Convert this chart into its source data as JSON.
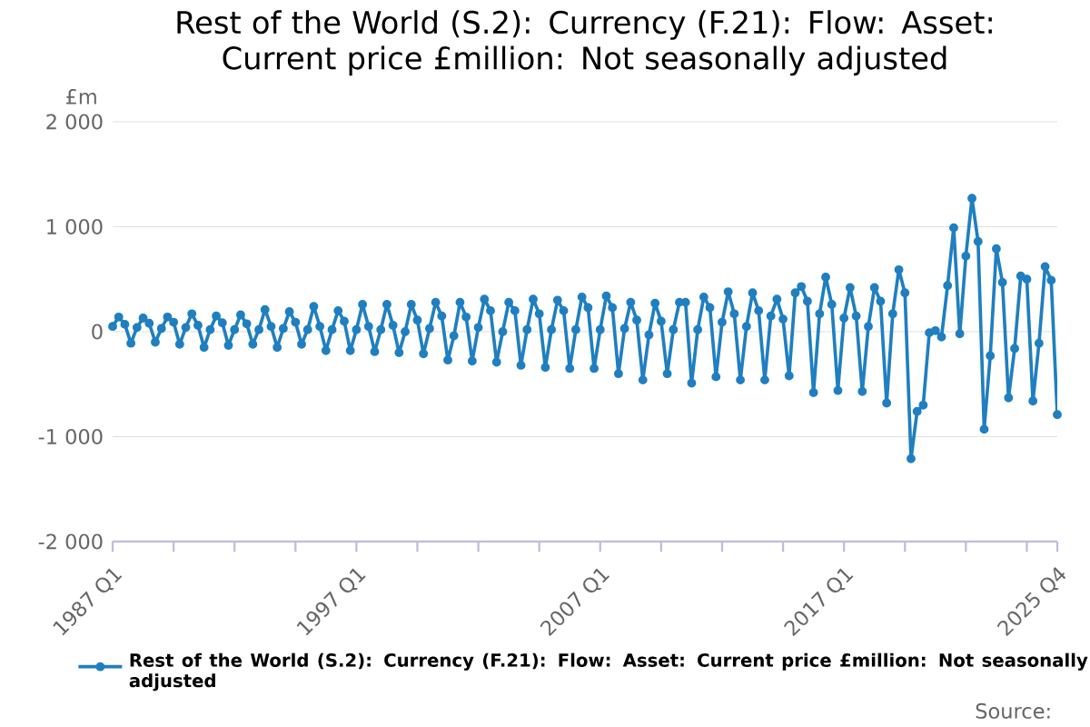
{
  "chart_data": {
    "type": "line",
    "title": "Rest of the World (S.2): Currency (F.21): Flow: Asset: Current price £million: Not seasonally adjusted",
    "ylabel": "£m",
    "categories": [
      "1987 Q1",
      null,
      null,
      null,
      null,
      null,
      null,
      null,
      null,
      null,
      null,
      null,
      null,
      null,
      null,
      null,
      null,
      null,
      null,
      null,
      null,
      null,
      null,
      null,
      null,
      null,
      null,
      null,
      null,
      null,
      null,
      null,
      null,
      null,
      null,
      null,
      null,
      null,
      null,
      null,
      "1997 Q1",
      null,
      null,
      null,
      null,
      null,
      null,
      null,
      null,
      null,
      null,
      null,
      null,
      null,
      null,
      null,
      null,
      null,
      null,
      null,
      null,
      null,
      null,
      null,
      null,
      null,
      null,
      null,
      null,
      null,
      null,
      null,
      null,
      null,
      null,
      null,
      null,
      null,
      null,
      null,
      "2007 Q1",
      null,
      null,
      null,
      null,
      null,
      null,
      null,
      null,
      null,
      null,
      null,
      null,
      null,
      null,
      null,
      null,
      null,
      null,
      null,
      null,
      null,
      null,
      null,
      null,
      null,
      null,
      null,
      null,
      null,
      null,
      null,
      null,
      null,
      null,
      null,
      null,
      null,
      null,
      null,
      "2017 Q1",
      null,
      null,
      null,
      null,
      null,
      null,
      null,
      null,
      null,
      null,
      null,
      null,
      null,
      null,
      null,
      null,
      null,
      null,
      null,
      null,
      null,
      null,
      null,
      null,
      null,
      null,
      null,
      null,
      null,
      null,
      null,
      null,
      null,
      null,
      "2025 Q4"
    ],
    "series": [
      {
        "name": "Rest of the World (S.2): Currency (F.21): Flow: Asset: Current price £million: Not seasonally adjusted",
        "color": "#1f7fc0",
        "values": [
          50,
          140,
          70,
          -110,
          40,
          130,
          80,
          -100,
          30,
          140,
          90,
          -120,
          40,
          170,
          60,
          -150,
          20,
          150,
          85,
          -130,
          20,
          160,
          75,
          -120,
          20,
          210,
          50,
          -150,
          30,
          190,
          90,
          -120,
          20,
          240,
          50,
          -180,
          20,
          200,
          100,
          -180,
          20,
          260,
          50,
          -190,
          20,
          260,
          60,
          -200,
          0,
          260,
          110,
          -210,
          30,
          280,
          150,
          -270,
          -40,
          280,
          140,
          -280,
          40,
          310,
          200,
          -290,
          0,
          280,
          200,
          -320,
          20,
          310,
          170,
          -340,
          20,
          300,
          200,
          -350,
          20,
          330,
          230,
          -350,
          20,
          340,
          230,
          -400,
          30,
          280,
          110,
          -460,
          -30,
          270,
          100,
          -400,
          20,
          280,
          280,
          -490,
          20,
          330,
          230,
          -430,
          90,
          380,
          170,
          -460,
          50,
          370,
          200,
          -460,
          150,
          310,
          120,
          -420,
          370,
          430,
          290,
          -580,
          170,
          520,
          260,
          -560,
          130,
          420,
          150,
          -570,
          50,
          420,
          290,
          -680,
          170,
          590,
          370,
          -1210,
          -760,
          -700,
          -10,
          10,
          -50,
          440,
          990,
          -20,
          720,
          1270,
          860,
          -930,
          -230,
          790,
          470,
          -630,
          -160,
          530,
          500,
          -660,
          -110,
          620,
          490,
          -790
        ]
      }
    ],
    "ylim": [
      -2000,
      2000
    ],
    "yticks": [
      {
        "value": -2000,
        "label": "-2 000"
      },
      {
        "value": -1000,
        "label": "-1 000"
      },
      0,
      {
        "value": 1000,
        "label": "1 000"
      },
      {
        "value": 2000,
        "label": "2 000"
      }
    ],
    "grid": "y",
    "legend": "bottom",
    "marker": "circle",
    "annotations": [
      "Source:"
    ]
  }
}
